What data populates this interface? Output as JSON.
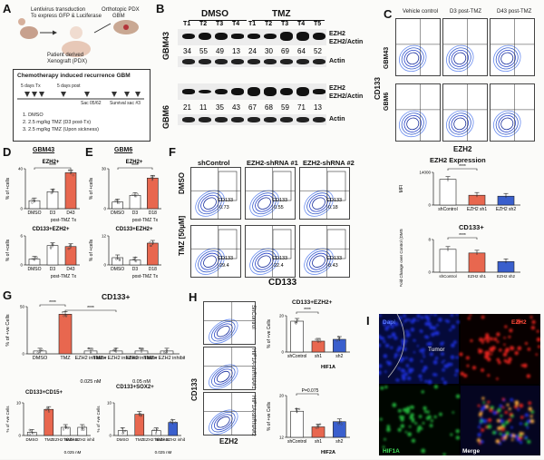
{
  "panels": {
    "A": {
      "letter": "A",
      "steps": [
        "Lentivirus transduction",
        "To express GFP & Luciferase",
        "Orthotopic PDX",
        "GBM",
        "Patient derived",
        "Xenograft (PDX)"
      ],
      "box_title": "Chemotherapy induced recurrence GBM",
      "timeline": [
        "5 days Tx",
        "5 days post",
        "Sac 05/62",
        "Survival sac #3"
      ],
      "treatments": [
        "1. DMSO",
        "2. 2.5 mg/kg TMZ (D3 post-Tx)",
        "3. 2.5 mg/kg TMZ (Upon sickness)"
      ]
    },
    "B": {
      "letter": "B",
      "groups": [
        "DMSO",
        "TMZ"
      ],
      "lanes_top": [
        "T1",
        "T2",
        "T3",
        "T4",
        "T1",
        "T2",
        "T3",
        "T4",
        "T5"
      ],
      "row_labels": [
        "EZH2",
        "Actin",
        "EZH2",
        "Actin"
      ],
      "cell_lines": [
        "GBM43",
        "GBM6"
      ],
      "ratio_label": "EZH2/Actin",
      "gbm43_values": [
        "34",
        "55",
        "49",
        "13",
        "24",
        "30",
        "69",
        "64",
        "52"
      ],
      "gbm6_values": [
        "21",
        "11",
        "35",
        "43",
        "67",
        "68",
        "59",
        "71",
        "13"
      ]
    },
    "C": {
      "letter": "C",
      "columns": [
        "Vehicle control",
        "D3 post-TMZ",
        "D43 post-TMZ"
      ],
      "rows": [
        "GBM43",
        "GBM6"
      ],
      "y_axis": "CD133",
      "x_axis": "EZH2"
    },
    "D": {
      "letter": "D",
      "title": "GBM43",
      "top_title": "EZH2+",
      "bottom_title": "CD133+EZH2+",
      "ylabel": "% of +cells",
      "xlabels": [
        "DMSO",
        "D3",
        "D43"
      ],
      "xfooter": "post-TMZ Tx"
    },
    "E": {
      "letter": "E",
      "title": "GBM6",
      "top_title": "EZH2+",
      "bottom_title": "CD133+EZH2+",
      "ylabel": "% of +cells",
      "xlabels": [
        "DMSO",
        "D3",
        "D18"
      ],
      "xfooter": "post-TMZ Tx"
    },
    "F": {
      "letter": "F",
      "columns": [
        "shControl",
        "EZH2-shRNA #1",
        "EZH2-shRNA #2"
      ],
      "rows": [
        "DMSO",
        "TMZ [50µM]"
      ],
      "gate": "CD133",
      "values_dmso": [
        "0.73",
        "0.55",
        "0.18"
      ],
      "values_tmz": [
        "29.4",
        "22.4",
        "8.43"
      ],
      "x_axis": "CD133",
      "chart1_title": "EZH2 Expression",
      "chart1_ylabel": "MFI",
      "chart2_title": "CD133+",
      "chart2_ylabel": "Fold Change over Control (DMSO)",
      "xlabels": [
        "shControl",
        "EZH2 sh1",
        "EZH2 sh2"
      ]
    },
    "G": {
      "letter": "G",
      "title": "CD133+",
      "ylabel": "% of +ve Cells",
      "xlabels": [
        "DMSO",
        "TMZ",
        "EZH2 inhibitor",
        "TMZ+ EZH2 inhibitor",
        "EZH2 inhibitor",
        "TMZ+ EZH2 inhibitor"
      ],
      "doses": [
        "0.025 nM",
        "0.05 nM"
      ],
      "sub1_title": "CD133+CD15+",
      "sub2_title": "CD133+SOX2+",
      "sub_xlabels": [
        "DMSO",
        "TMZ",
        "EZH2 inhibitor",
        "TMZ+ EZH2 inhibitor"
      ],
      "sub_dose": "0.025 nM"
    },
    "H": {
      "letter": "H",
      "flow_labels": [
        "ShControl",
        "HIF1A-shRNA#1",
        "HIF1A-shRNA#2"
      ],
      "y_axis": "CD133",
      "x_axis": "EZH2",
      "chart1_title": "CD133+EZH2+",
      "chart1_xgroup": "HIF1A",
      "chart2_xgroup": "HIF2A",
      "ylabel": "% of +ve Cells",
      "xlabels": [
        "shControl",
        "sh1",
        "sh2"
      ],
      "pvalue": "P=0.075"
    },
    "I": {
      "letter": "I",
      "labels": [
        "Dapi",
        "Tumor",
        "EZH2",
        "HIF1A",
        "Merge"
      ]
    }
  },
  "chart_data": [
    {
      "type": "bar",
      "panel": "D-top",
      "title": "EZH2+",
      "categories": [
        "DMSO",
        "D3",
        "D43"
      ],
      "values": [
        8,
        17,
        36
      ],
      "ylabel": "% of +cells",
      "ylim": [
        0,
        40
      ]
    },
    {
      "type": "bar",
      "panel": "D-bottom",
      "title": "CD133+EZH2+",
      "categories": [
        "DMSO",
        "D3",
        "D43"
      ],
      "values": [
        1.2,
        4,
        3.8
      ],
      "ylabel": "% of +cells",
      "ylim": [
        0,
        6
      ]
    },
    {
      "type": "bar",
      "panel": "E-top",
      "title": "EZH2+",
      "categories": [
        "DMSO",
        "D3",
        "D18"
      ],
      "values": [
        5,
        10,
        23
      ],
      "ylabel": "% of +cells",
      "ylim": [
        0,
        30
      ]
    },
    {
      "type": "bar",
      "panel": "E-bottom",
      "title": "CD133+EZH2+",
      "categories": [
        "DMSO",
        "D3",
        "D18"
      ],
      "values": [
        3,
        2,
        9
      ],
      "ylabel": "% of +cells",
      "ylim": [
        0,
        12
      ]
    },
    {
      "type": "bar",
      "panel": "F-top",
      "title": "EZH2 Expression",
      "categories": [
        "shControl",
        "EZH2 sh1",
        "EZH2 sh2"
      ],
      "values": [
        11000,
        4200,
        3800
      ],
      "ylabel": "MFI",
      "ylim": [
        0,
        14000
      ]
    },
    {
      "type": "bar",
      "panel": "F-bottom",
      "title": "CD133+",
      "categories": [
        "shControl",
        "EZH2 sh1",
        "EZH2 sh2"
      ],
      "values": [
        5.6,
        4.7,
        2.6
      ],
      "ylabel": "Fold Change over Control (DMSO)",
      "ylim": [
        0,
        8
      ]
    },
    {
      "type": "bar",
      "panel": "G-top",
      "title": "CD133+",
      "categories": [
        "DMSO",
        "TMZ",
        "EZH2 inhibitor",
        "TMZ+ EZH2 inhibitor",
        "EZH2 inhibitor",
        "TMZ+ EZH2 inhibitor"
      ],
      "values": [
        3,
        42,
        3,
        3,
        3,
        3
      ],
      "ylabel": "% of +ve Cells",
      "ylim": [
        0,
        50
      ]
    },
    {
      "type": "bar",
      "panel": "G-sub1",
      "title": "CD133+CD15+",
      "categories": [
        "DMSO",
        "TMZ",
        "EZH2 inhibitor",
        "TMZ+ EZH2 inhibitor"
      ],
      "values": [
        1,
        8,
        2.5,
        2.5
      ],
      "ylabel": "% of +ve Cells",
      "ylim": [
        0,
        10
      ]
    },
    {
      "type": "bar",
      "panel": "G-sub2",
      "title": "CD133+SOX2+",
      "categories": [
        "DMSO",
        "TMZ",
        "EZH2 inhibitor",
        "TMZ+ EZH2 inhibitor"
      ],
      "values": [
        1.5,
        6.5,
        1.5,
        4
      ],
      "ylabel": "% of +ve Cells",
      "ylim": [
        0,
        10
      ]
    },
    {
      "type": "bar",
      "panel": "H-top",
      "title": "CD133+EZH2+",
      "categories": [
        "shControl",
        "sh1",
        "sh2"
      ],
      "values": [
        17,
        6,
        7
      ],
      "ylabel": "% of +ve Cells",
      "ylim": [
        0,
        20
      ]
    },
    {
      "type": "bar",
      "panel": "H-bottom",
      "title": "",
      "categories": [
        "shControl",
        "sh1",
        "sh2"
      ],
      "values": [
        17,
        14,
        15
      ],
      "ylabel": "% of +ve Cells",
      "ylim": [
        12,
        20
      ]
    }
  ],
  "colors": {
    "bar_red": "#e8674f",
    "bar_blue": "#3a5fcd",
    "bar_white": "#ffffff",
    "flow_blue": "#2a45c9",
    "dapi": "#1b2fd6",
    "ezh2": "#e0241b",
    "hif1a": "#23b13a"
  }
}
